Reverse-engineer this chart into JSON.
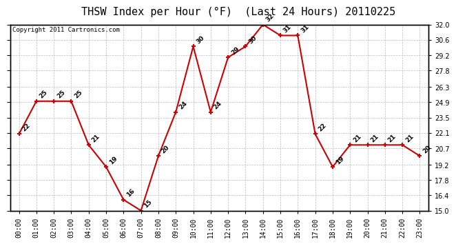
{
  "title": "THSW Index per Hour (°F)  (Last 24 Hours) 20110225",
  "copyright": "Copyright 2011 Cartronics.com",
  "hours": [
    "00:00",
    "01:00",
    "02:00",
    "03:00",
    "04:00",
    "05:00",
    "06:00",
    "07:00",
    "08:00",
    "09:00",
    "10:00",
    "11:00",
    "12:00",
    "13:00",
    "14:00",
    "15:00",
    "16:00",
    "17:00",
    "18:00",
    "19:00",
    "20:00",
    "21:00",
    "22:00",
    "23:00"
  ],
  "values": [
    22,
    25,
    25,
    25,
    21,
    19,
    16,
    15,
    20,
    24,
    30,
    24,
    29,
    30,
    32,
    31,
    31,
    22,
    19,
    21,
    21,
    21,
    21,
    20
  ],
  "line_color": "#cc0000",
  "marker_color": "#cc0000",
  "bg_color": "#ffffff",
  "plot_bg_color": "#ffffff",
  "grid_color": "#bbbbbb",
  "ylim_min": 15.0,
  "ylim_max": 32.0,
  "yticks": [
    15.0,
    16.4,
    17.8,
    19.2,
    20.7,
    22.1,
    23.5,
    24.9,
    26.3,
    27.8,
    29.2,
    30.6,
    32.0
  ],
  "title_fontsize": 11,
  "label_fontsize": 7,
  "copyright_fontsize": 6.5,
  "annotation_fontsize": 6.5
}
